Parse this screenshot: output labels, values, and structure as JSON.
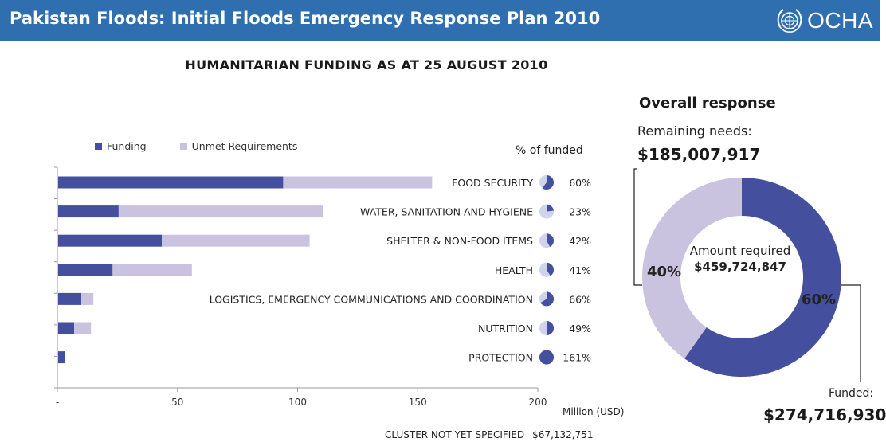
{
  "header": {
    "title": "Pakistan Floods: Initial Floods Emergency Response Plan 2010",
    "logo_text": "OCHA",
    "logo_icon": "un-emblem-icon"
  },
  "main_title": "HUMANITARIAN FUNDING AS AT 25 AUGUST 2010",
  "legend": {
    "funding": "Funding",
    "unmet": "Unmet Requirements"
  },
  "pct_header": "% of funded",
  "colors": {
    "header_bg": "#2f6fb0",
    "funding": "#44509d",
    "unmet": "#c9c3e0",
    "pie_bg": "#cfd3ec"
  },
  "chart_data": [
    {
      "type": "bar",
      "orientation": "horizontal",
      "stacked": true,
      "categories": [
        "FOOD SECURITY",
        "WATER, SANITATION AND HYGIENE",
        "SHELTER & NON-FOOD ITEMS",
        "HEALTH",
        "LOGISTICS, EMERGENCY COMMUNICATIONS AND COORDINATION",
        "NUTRITION",
        "PROTECTION"
      ],
      "series": [
        {
          "name": "Funding",
          "values": [
            94,
            25.5,
            43.5,
            23,
            10,
            7,
            3
          ]
        },
        {
          "name": "Unmet Requirements",
          "values": [
            62,
            85,
            61.5,
            33,
            5,
            7,
            0
          ]
        }
      ],
      "percent_funded": [
        "60%",
        "23%",
        "42%",
        "41%",
        "66%",
        "49%",
        "161%"
      ],
      "percent_funded_values": [
        60,
        23,
        42,
        41,
        66,
        49,
        161
      ],
      "xlim": [
        0,
        200
      ],
      "xticks": [
        "-",
        "50",
        "100",
        "150",
        "200"
      ],
      "xlabel": "Million (USD)",
      "legend_position": "top-left",
      "grid": false
    },
    {
      "type": "pie",
      "title": "Overall response",
      "slices": [
        {
          "label": "Funded",
          "value": 274716930,
          "percent": "60%"
        },
        {
          "label": "Remaining needs",
          "value": 185007917,
          "percent": "40%"
        }
      ],
      "total_label": "Amount required",
      "total_value": "$459,724,847"
    }
  ],
  "overall": {
    "title": "Overall response",
    "remaining_label": "Remaining needs:",
    "remaining_value": "$185,007,917",
    "amount_label": "Amount required",
    "amount_value": "$459,724,847",
    "funded_pct": "60%",
    "remaining_pct": "40%",
    "funded_label": "Funded:",
    "funded_value": "$274,716,930"
  },
  "cluster_note": {
    "label": "CLUSTER NOT YET SPECIFIED",
    "value": "$67,132,751"
  }
}
